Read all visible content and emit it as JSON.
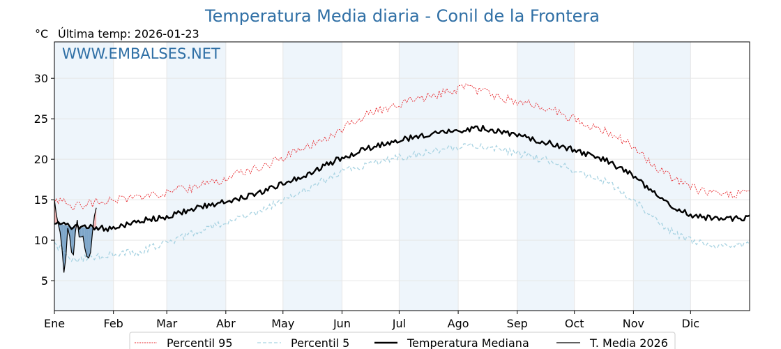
{
  "header": {
    "title": "Temperatura Media diaria - Conil de la Frontera",
    "unit": "°C",
    "last_temp": "Última temp: 2026-01-23",
    "watermark": "WWW.EMBALSES.NET"
  },
  "legend": [
    {
      "label": "Percentil 95",
      "color": "#e8262b",
      "style": "dotted-thin"
    },
    {
      "label": "Percentil 5",
      "color": "#a8d3e2",
      "style": "dashed"
    },
    {
      "label": "Temperatura Mediana",
      "color": "#000000",
      "style": "solid-thick"
    },
    {
      "label": "T. Media 2026",
      "color": "#000000",
      "style": "solid-thin"
    }
  ],
  "chart_data": {
    "type": "line",
    "x_unit": "day of year",
    "ylim": [
      1.3,
      34.5
    ],
    "xlim": [
      0,
      365
    ],
    "grid": true,
    "y_ticks": [
      5,
      10,
      15,
      20,
      25,
      30
    ],
    "month_ticks": [
      {
        "label": "Ene",
        "day": 0
      },
      {
        "label": "Feb",
        "day": 31
      },
      {
        "label": "Mar",
        "day": 59
      },
      {
        "label": "Abr",
        "day": 90
      },
      {
        "label": "May",
        "day": 120
      },
      {
        "label": "Jun",
        "day": 151
      },
      {
        "label": "Jul",
        "day": 181
      },
      {
        "label": "Ago",
        "day": 212
      },
      {
        "label": "Sep",
        "day": 243
      },
      {
        "label": "Oct",
        "day": 273
      },
      {
        "label": "Nov",
        "day": 304
      },
      {
        "label": "Dic",
        "day": 334
      }
    ],
    "shaded_months": [
      0,
      2,
      4,
      6,
      8,
      10
    ],
    "colors": {
      "p95": "#e8262b",
      "p5": "#a8d3e2",
      "median": "#000000",
      "current": "#000000",
      "above_fill": "#f2b6b6",
      "below_fill": "#7ea6c9",
      "month_shade": "#eef5fb",
      "title": "#2f6fa5"
    },
    "series": {
      "p95": {
        "x": [
          0,
          10,
          20,
          30,
          45,
          60,
          75,
          90,
          100,
          110,
          120,
          135,
          150,
          165,
          180,
          195,
          205,
          215,
          225,
          235,
          245,
          260,
          275,
          290,
          305,
          320,
          335,
          350,
          365
        ],
        "y": [
          15.0,
          14.2,
          14.6,
          15.0,
          15.4,
          16.0,
          16.6,
          17.6,
          18.6,
          19.2,
          20.2,
          21.8,
          23.6,
          25.6,
          26.8,
          27.6,
          28.2,
          28.8,
          28.4,
          27.6,
          27.0,
          26.2,
          24.8,
          23.4,
          21.4,
          18.2,
          16.4,
          15.6,
          15.8
        ]
      },
      "p5": {
        "x": [
          0,
          10,
          20,
          30,
          45,
          60,
          75,
          90,
          100,
          110,
          120,
          135,
          150,
          165,
          180,
          195,
          205,
          215,
          225,
          235,
          245,
          260,
          275,
          290,
          305,
          320,
          335,
          350,
          365
        ],
        "y": [
          9.6,
          7.6,
          7.8,
          8.2,
          8.6,
          9.8,
          11.0,
          12.2,
          13.0,
          13.8,
          15.0,
          16.6,
          18.4,
          19.4,
          20.2,
          20.8,
          21.2,
          21.6,
          21.6,
          21.2,
          20.6,
          19.8,
          18.4,
          17.2,
          14.8,
          11.6,
          9.8,
          9.4,
          9.6
        ]
      },
      "median": {
        "x": [
          0,
          10,
          20,
          30,
          45,
          60,
          75,
          90,
          100,
          110,
          120,
          135,
          150,
          165,
          180,
          195,
          205,
          215,
          225,
          235,
          245,
          260,
          275,
          290,
          305,
          320,
          335,
          350,
          365
        ],
        "y": [
          12.2,
          11.6,
          11.6,
          11.4,
          12.4,
          12.9,
          14.0,
          14.8,
          15.4,
          16.1,
          17.0,
          18.4,
          20.1,
          21.4,
          22.3,
          23.0,
          23.4,
          23.6,
          23.8,
          23.4,
          22.8,
          22.0,
          21.0,
          19.8,
          17.8,
          14.8,
          13.0,
          12.6,
          12.8
        ]
      },
      "current": {
        "x": [
          0,
          1,
          2,
          3,
          4,
          5,
          6,
          7,
          8,
          9,
          10,
          11,
          12,
          13,
          14,
          15,
          16,
          17,
          18,
          19,
          20,
          21,
          22
        ],
        "y": [
          15.0,
          13.2,
          12.0,
          11.0,
          9.0,
          6.0,
          7.8,
          11.5,
          10.5,
          8.5,
          8.2,
          11.0,
          12.5,
          10.4,
          10.4,
          10.5,
          9.0,
          8.0,
          7.8,
          8.5,
          11.0,
          13.0,
          14.0
        ]
      }
    }
  }
}
